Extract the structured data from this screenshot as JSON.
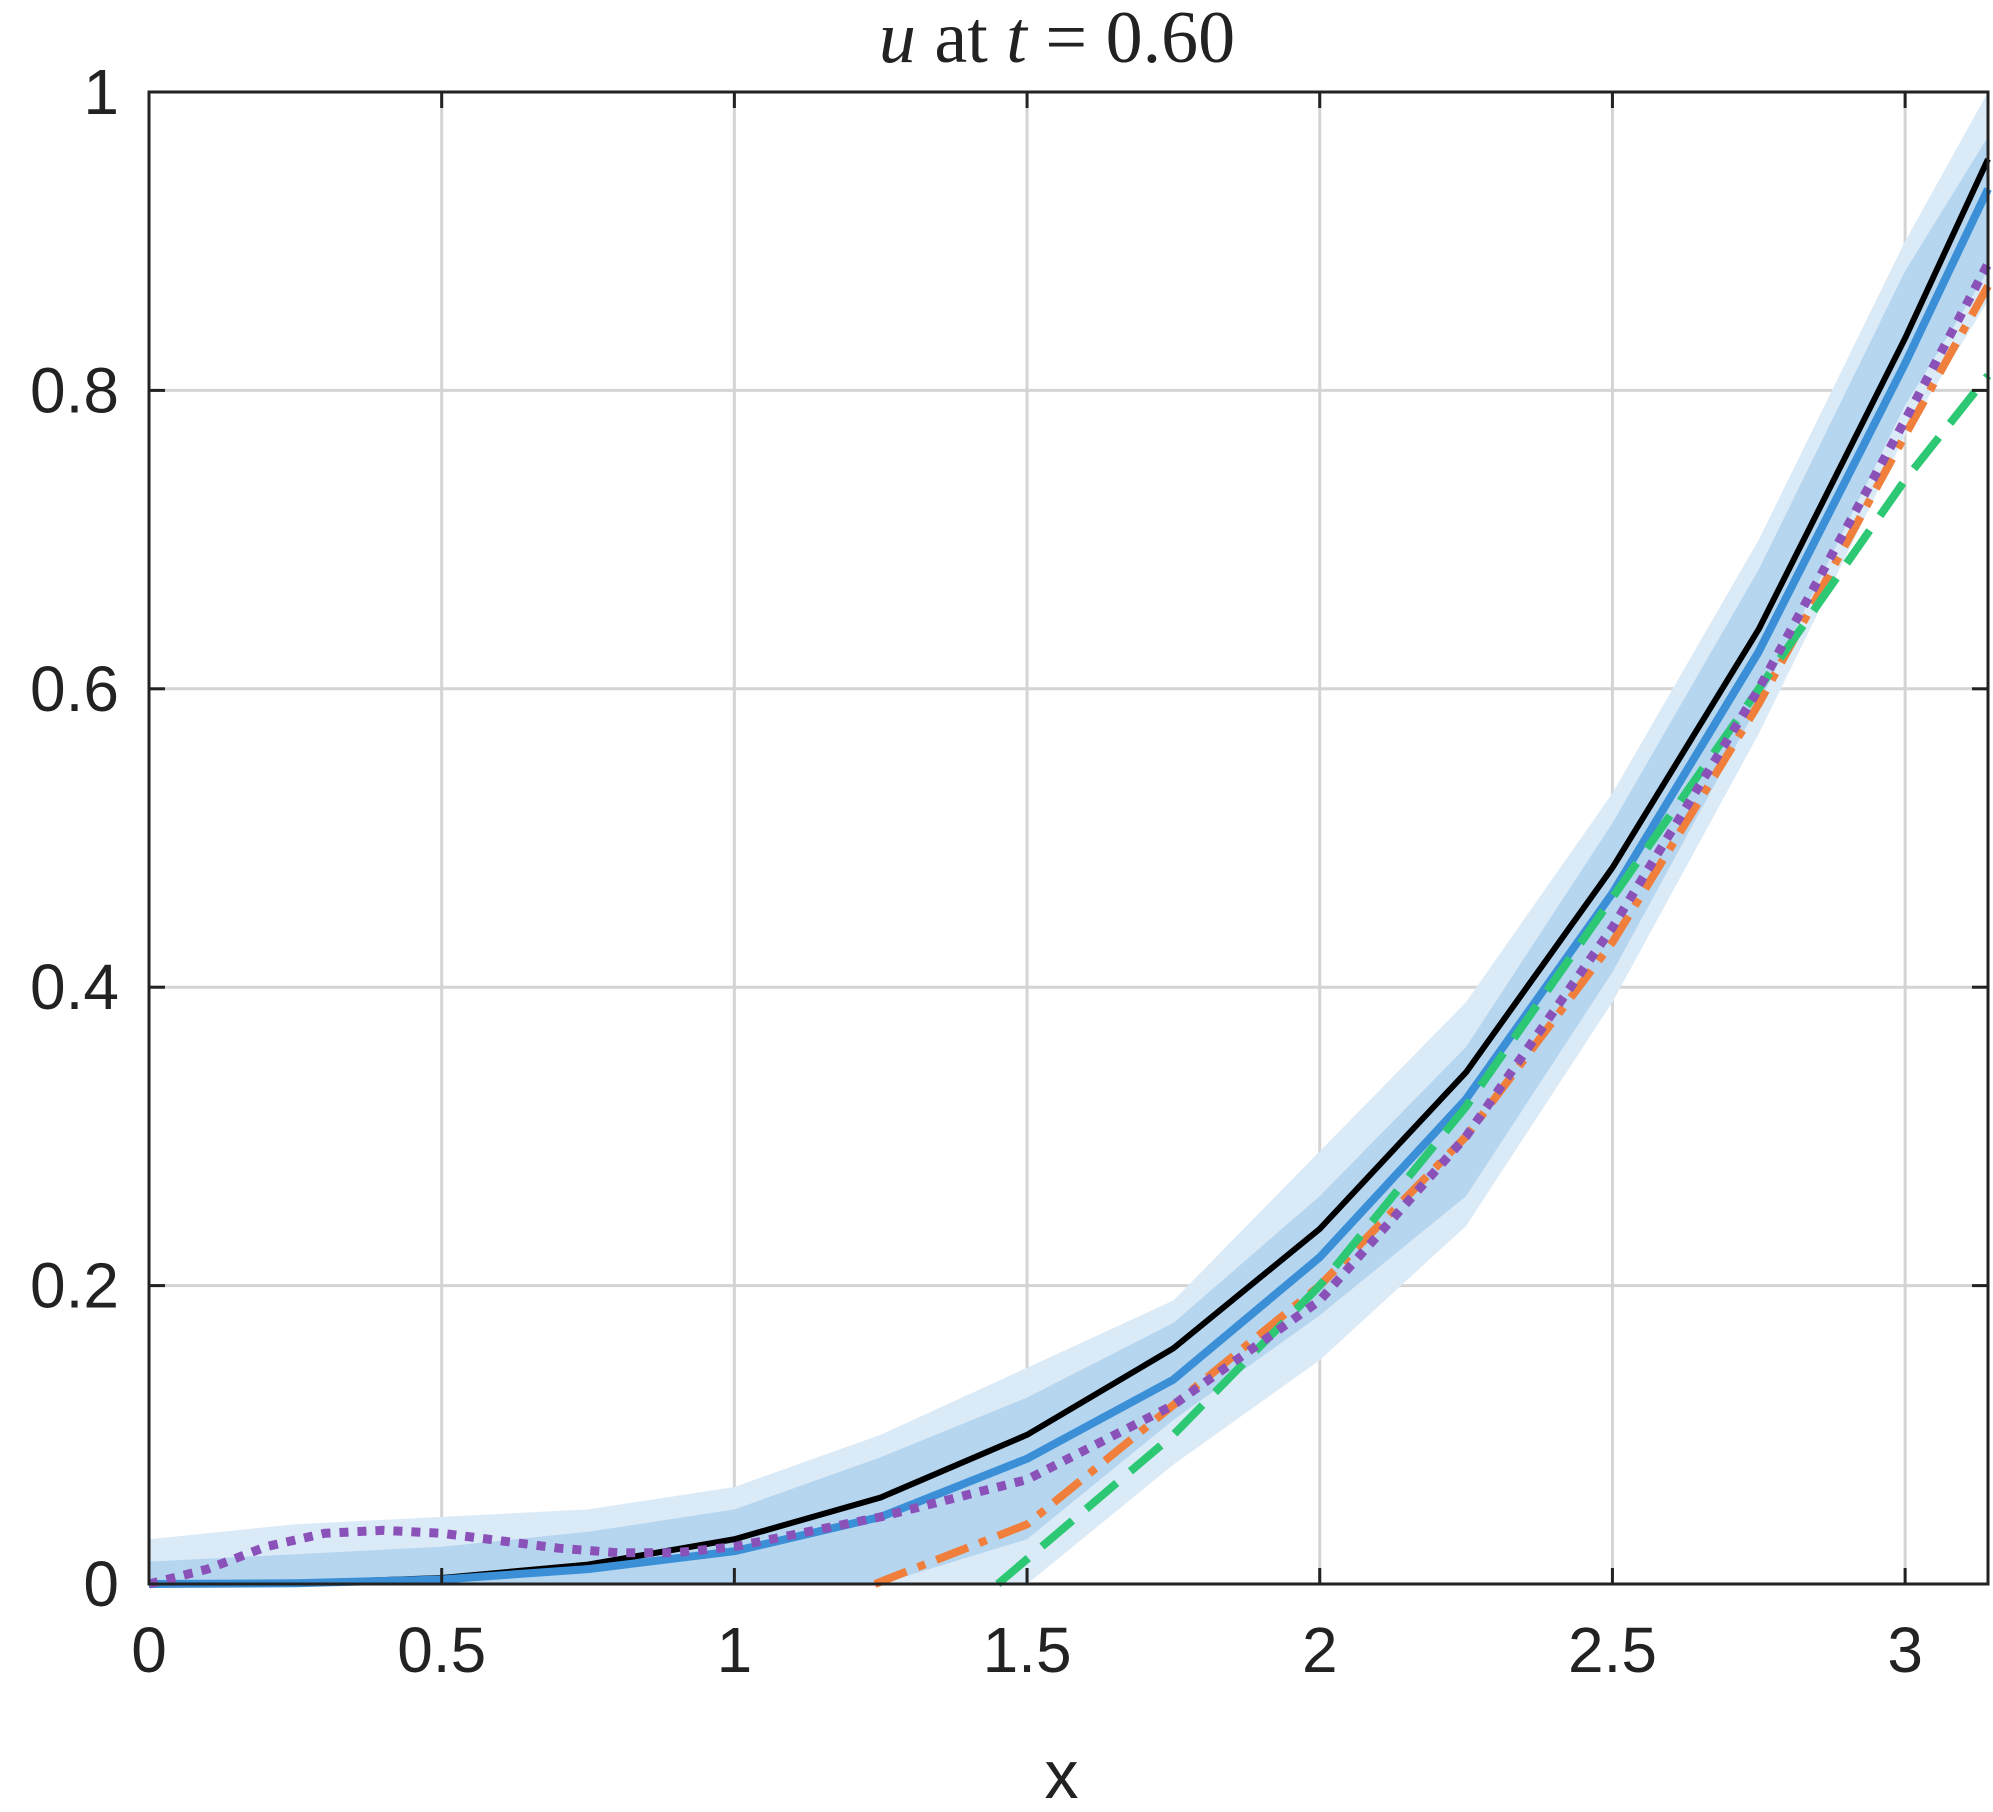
{
  "chart_data": {
    "type": "line",
    "title": {
      "var": "u",
      "mid": " at ",
      "tvar": "t",
      "rest": " = 0.60"
    },
    "xlabel": "x",
    "ylabel": "",
    "xlim": [
      0,
      3.14159
    ],
    "ylim": [
      0,
      1
    ],
    "xticks": [
      0,
      0.5,
      1,
      1.5,
      2,
      2.5,
      3
    ],
    "xtick_labels": [
      "0",
      "0.5",
      "1",
      "1.5",
      "2",
      "2.5",
      "3"
    ],
    "yticks": [
      0,
      0.2,
      0.4,
      0.6,
      0.8,
      1
    ],
    "ytick_labels": [
      "0",
      "0.2",
      "0.4",
      "0.6",
      "0.8",
      "1"
    ],
    "grid": true,
    "bands": [
      {
        "style": "outer",
        "color": "#dbeaf7",
        "x": [
          0,
          0.25,
          0.5,
          0.75,
          1.0,
          1.25,
          1.5,
          1.75,
          2.0,
          2.25,
          2.5,
          2.75,
          3.0,
          3.14159
        ],
        "lower": [
          0,
          0,
          0,
          0,
          0,
          0,
          0,
          0.08,
          0.15,
          0.24,
          0.39,
          0.57,
          0.77,
          0.86
        ],
        "upper": [
          0.03,
          0.04,
          0.045,
          0.05,
          0.065,
          0.1,
          0.145,
          0.19,
          0.29,
          0.39,
          0.53,
          0.7,
          0.9,
          1.0
        ]
      },
      {
        "style": "inner",
        "color": "#b6d6f0",
        "x": [
          0,
          0.25,
          0.5,
          0.75,
          1.0,
          1.25,
          1.5,
          1.75,
          2.0,
          2.25,
          2.5,
          2.75,
          3.0,
          3.14159
        ],
        "lower": [
          0,
          0,
          0,
          0,
          0,
          0,
          0.03,
          0.11,
          0.18,
          0.26,
          0.41,
          0.59,
          0.79,
          0.88
        ],
        "upper": [
          0.015,
          0.02,
          0.025,
          0.035,
          0.05,
          0.085,
          0.125,
          0.175,
          0.26,
          0.36,
          0.51,
          0.68,
          0.88,
          0.97
        ]
      }
    ],
    "series": [
      {
        "style": "solid",
        "color": "#000000",
        "width": 6,
        "dash": "",
        "x": [
          0,
          0.25,
          0.5,
          0.75,
          1.0,
          1.25,
          1.5,
          1.75,
          2.0,
          2.25,
          2.5,
          2.75,
          3.0,
          3.14159
        ],
        "y": [
          0,
          0.0006,
          0.004,
          0.013,
          0.03,
          0.058,
          0.1,
          0.158,
          0.238,
          0.343,
          0.48,
          0.64,
          0.835,
          0.955
        ]
      },
      {
        "style": "mean",
        "color": "#3a8fd6",
        "width": 8,
        "dash": "",
        "x": [
          0,
          0.25,
          0.5,
          0.75,
          1.0,
          1.25,
          1.5,
          1.75,
          2.0,
          2.25,
          2.5,
          2.75,
          3.0,
          3.14159
        ],
        "y": [
          0,
          0.0005,
          0.003,
          0.01,
          0.022,
          0.045,
          0.084,
          0.137,
          0.219,
          0.325,
          0.463,
          0.625,
          0.818,
          0.935
        ]
      },
      {
        "style": "dashdot",
        "color": "#f07f3c",
        "width": 8,
        "dash": "34 12 8 12",
        "x": [
          1.24,
          1.5,
          1.75,
          2.0,
          2.25,
          2.5,
          2.75,
          3.0,
          3.14159
        ],
        "y": [
          0,
          0.04,
          0.12,
          0.2,
          0.3,
          0.43,
          0.59,
          0.77,
          0.87
        ]
      },
      {
        "style": "dashed",
        "color": "#2dc874",
        "width": 8,
        "dash": "40 18",
        "x": [
          1.45,
          1.75,
          2.0,
          2.25,
          2.5,
          2.75,
          3.0,
          3.14159
        ],
        "y": [
          0,
          0.1,
          0.2,
          0.32,
          0.46,
          0.6,
          0.74,
          0.81
        ]
      },
      {
        "style": "dotted",
        "color": "#8a52b8",
        "width": 9,
        "dash": "9 9",
        "x": [
          0,
          0.1,
          0.2,
          0.3,
          0.4,
          0.5,
          0.6,
          0.7,
          0.8,
          0.9,
          1.0,
          1.25,
          1.5,
          1.75,
          2.0,
          2.25,
          2.5,
          2.75,
          3.0,
          3.14159
        ],
        "y": [
          0,
          0.01,
          0.025,
          0.034,
          0.036,
          0.034,
          0.029,
          0.024,
          0.021,
          0.021,
          0.025,
          0.045,
          0.07,
          0.12,
          0.19,
          0.3,
          0.44,
          0.6,
          0.78,
          0.885
        ]
      }
    ]
  }
}
